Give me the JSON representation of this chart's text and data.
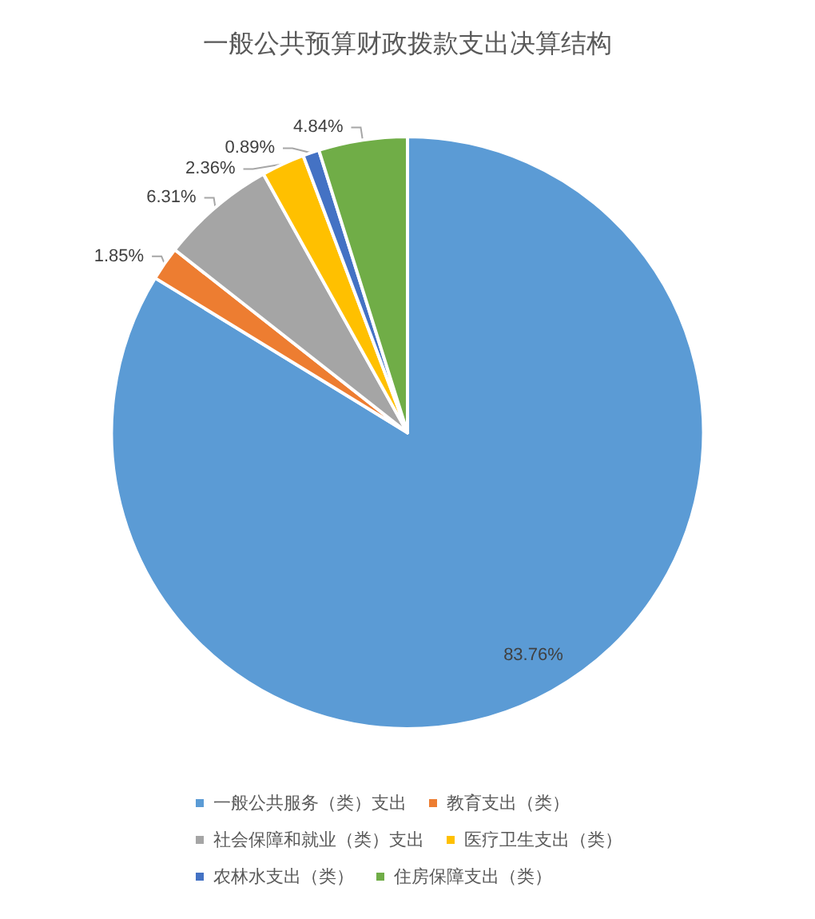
{
  "chart_data": {
    "type": "pie",
    "title": "一般公共预算财政拨款支出决算结构",
    "categories": [
      "一般公共服务（类）支出",
      "教育支出（类）",
      "社会保障和就业（类）支出",
      "医疗卫生支出（类）",
      "农林水支出（类）",
      "住房保障支出（类）"
    ],
    "values": [
      83.76,
      1.85,
      6.31,
      2.36,
      0.89,
      4.84
    ],
    "value_labels": [
      "83.76%",
      "1.85%",
      "6.31%",
      "2.36%",
      "0.89%",
      "4.84%"
    ],
    "colors": [
      "#5b9bd5",
      "#ed7d31",
      "#a5a5a5",
      "#ffc000",
      "#4472c4",
      "#70ad47"
    ],
    "legend": "bottom"
  }
}
